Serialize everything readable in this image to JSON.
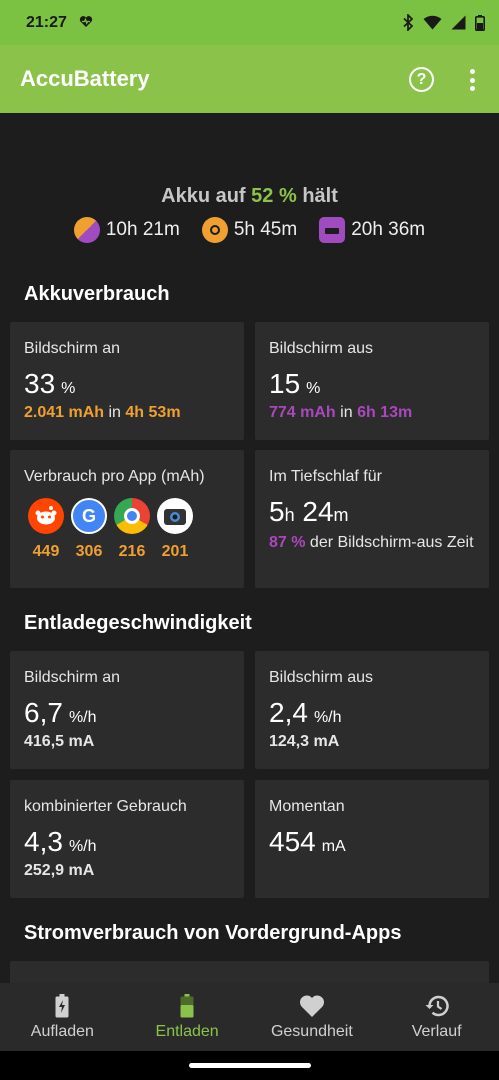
{
  "status": {
    "time": "21:27"
  },
  "app": {
    "title": "AccuBattery",
    "help_glyph": "?"
  },
  "summary": {
    "hold_prefix": "Akku auf",
    "hold_pct": "52 %",
    "hold_suffix": "hält",
    "times": [
      {
        "icon": "combined-usage-icon",
        "value": "10h 21m"
      },
      {
        "icon": "screen-on-sun-icon",
        "value": "5h 45m"
      },
      {
        "icon": "sleep-bed-icon",
        "value": "20h 36m"
      }
    ]
  },
  "usage": {
    "title": "Akkuverbrauch",
    "screen_on": {
      "label": "Bildschirm an",
      "value": "33",
      "unit": "%",
      "mah": "2.041 mAh",
      "in": "in",
      "duration": "4h 53m"
    },
    "screen_off": {
      "label": "Bildschirm aus",
      "value": "15",
      "unit": "%",
      "mah": "774 mAh",
      "in": "in",
      "duration": "6h 13m"
    },
    "per_app": {
      "label": "Verbrauch pro App (mAh)",
      "apps": [
        {
          "icon": "reddit-icon",
          "value": "449",
          "color": "#ff4500"
        },
        {
          "icon": "google-icon",
          "value": "306",
          "color": "#4285f4"
        },
        {
          "icon": "chrome-icon",
          "value": "216",
          "color": "#34a853"
        },
        {
          "icon": "camera-icon",
          "value": "201",
          "color": "#ffffff"
        }
      ]
    },
    "deep_sleep": {
      "label": "Im Tiefschlaf für",
      "hours": "5",
      "h": "h",
      "minutes": "24",
      "m": "m",
      "pct": "87 %",
      "desc": "der Bildschirm-aus Zeit"
    }
  },
  "discharge": {
    "title": "Entladegeschwindigkeit",
    "screen_on": {
      "label": "Bildschirm an",
      "value": "6,7",
      "unit": "%/h",
      "ma": "416,5 mA"
    },
    "screen_off": {
      "label": "Bildschirm aus",
      "value": "2,4",
      "unit": "%/h",
      "ma": "124,3 mA"
    },
    "combined": {
      "label": "kombinierter Gebrauch",
      "value": "4,3",
      "unit": "%/h",
      "ma": "252,9 mA"
    },
    "current": {
      "label": "Momentan",
      "value": "454",
      "unit": "mA"
    }
  },
  "foreground": {
    "title": "Stromverbrauch von Vordergrund-Apps"
  },
  "nav": [
    {
      "label": "Aufladen",
      "icon": "battery-charging-icon"
    },
    {
      "label": "Entladen",
      "icon": "battery-icon"
    },
    {
      "label": "Gesundheit",
      "icon": "heart-icon"
    },
    {
      "label": "Verlauf",
      "icon": "history-icon"
    }
  ],
  "colors": {
    "accent": "#8bc34a",
    "orange": "#f0a030",
    "purple": "#ab47bc"
  }
}
